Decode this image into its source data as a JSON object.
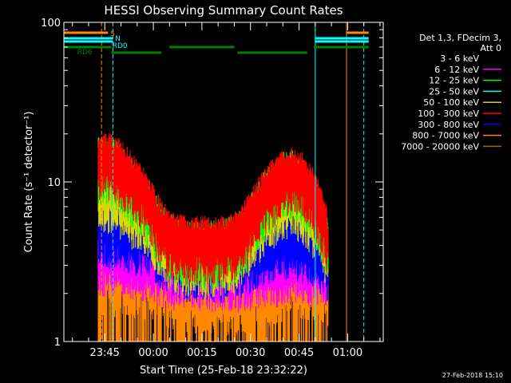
{
  "chart_data": {
    "type": "line",
    "title": "HESSI Observing Summary Count Rates",
    "xlabel": "Start Time (25-Feb-18 23:32:22)",
    "ylabel": "Count Rate (s⁻¹ detector⁻¹)",
    "yscale": "log",
    "ylim": [
      1,
      100
    ],
    "xlim": [
      "23:32:22",
      "01:11:00"
    ],
    "y_ticks": [
      "1",
      "10",
      "100"
    ],
    "x_ticks": [
      "23:45",
      "00:00",
      "00:15",
      "00:30",
      "00:45",
      "01:00"
    ],
    "timestamp": "27-Feb-2018 15:10",
    "legend": {
      "placement": "right",
      "header": [
        "Det 1,3, FDecim 3,",
        "Att 0"
      ],
      "entries": [
        {
          "label": "3 - 6 keV",
          "color": "#000000"
        },
        {
          "label": "6 - 12 keV",
          "color": "#ff00ff"
        },
        {
          "label": "12 - 25 keV",
          "color": "#00ff00"
        },
        {
          "label": "25 - 50 keV",
          "color": "#00ffff"
        },
        {
          "label": "50 - 100 keV",
          "color": "#d8d800"
        },
        {
          "label": "100 - 300 keV",
          "color": "#ff0000"
        },
        {
          "label": "300 - 800 keV",
          "color": "#0000ff"
        },
        {
          "label": "800 - 7000 keV",
          "color": "#ff8800"
        },
        {
          "label": "7000 - 20000 keV",
          "color": "#aa6600"
        }
      ]
    },
    "flag_bars": [
      {
        "label": "S",
        "color": "#ff8800",
        "segments": [
          [
            "23:32:22",
            "23:46:00"
          ],
          [
            "00:59:40",
            "01:06:30"
          ]
        ]
      },
      {
        "label": "N",
        "color": "#00ffff",
        "segments": [
          [
            "23:32:22",
            "23:47:30"
          ],
          [
            "00:50:00",
            "01:06:30"
          ]
        ]
      },
      {
        "label": "RD0",
        "color": "#00ffff",
        "segments": [
          [
            "23:32:22",
            "23:47:30"
          ],
          [
            "00:50:00",
            "01:06:30"
          ]
        ]
      },
      {
        "label": "RD6",
        "color": "#007f00",
        "segments": [
          [
            "23:32:22",
            "23:47:00"
          ],
          [
            "23:47:00",
            "00:02:30"
          ],
          [
            "00:05:00",
            "00:25:00"
          ],
          [
            "00:26:00",
            "00:47:30"
          ],
          [
            "00:49:30",
            "01:06:30"
          ]
        ]
      }
    ],
    "vlines": [
      {
        "time": "23:44:00",
        "color": "#ff8800",
        "style": "dashed"
      },
      {
        "time": "23:47:30",
        "color": "#00ffff",
        "style": "dashed"
      },
      {
        "time": "00:50:00",
        "color": "#00ffff",
        "style": "solid"
      },
      {
        "time": "00:59:40",
        "color": "#ff8800",
        "style": "solid"
      },
      {
        "time": "01:05:00",
        "color": "#00ffff",
        "style": "dashed"
      }
    ],
    "bands": [
      {
        "name": "100 - 300 keV",
        "color": "#ff0000",
        "points": [
          [
            "23:43:00",
            16
          ],
          [
            "23:46:00",
            16
          ],
          [
            "23:49:00",
            15
          ],
          [
            "23:52:00",
            13
          ],
          [
            "23:55:00",
            11
          ],
          [
            "23:58:00",
            9
          ],
          [
            "00:01:00",
            7
          ],
          [
            "00:04:00",
            5.5
          ],
          [
            "00:07:00",
            5
          ],
          [
            "00:10:00",
            4.8
          ],
          [
            "00:15:00",
            4.8
          ],
          [
            "00:20:00",
            4.8
          ],
          [
            "00:25:00",
            5
          ],
          [
            "00:28:00",
            6
          ],
          [
            "00:31:00",
            7.5
          ],
          [
            "00:34:00",
            9.5
          ],
          [
            "00:37:00",
            11
          ],
          [
            "00:40:00",
            12.5
          ],
          [
            "00:43:00",
            13
          ],
          [
            "00:46:00",
            12
          ],
          [
            "00:49:00",
            10
          ],
          [
            "00:52:00",
            7
          ],
          [
            "00:54:00",
            5
          ]
        ]
      },
      {
        "name": "12 - 25 keV",
        "color": "#00ff00",
        "points": [
          [
            "23:43:00",
            15
          ],
          [
            "23:46:00",
            15
          ],
          [
            "23:49:00",
            14
          ],
          [
            "23:52:00",
            12
          ],
          [
            "23:55:00",
            10
          ],
          [
            "23:58:00",
            8.5
          ],
          [
            "00:01:00",
            6.5
          ],
          [
            "00:04:00",
            5.2
          ],
          [
            "00:07:00",
            4.8
          ],
          [
            "00:10:00",
            4.5
          ],
          [
            "00:20:00",
            4.5
          ],
          [
            "00:25:00",
            4.8
          ],
          [
            "00:28:00",
            5.5
          ],
          [
            "00:31:00",
            7
          ],
          [
            "00:34:00",
            9
          ],
          [
            "00:37:00",
            10.5
          ],
          [
            "00:40:00",
            12
          ],
          [
            "00:43:00",
            12.5
          ],
          [
            "00:46:00",
            11
          ],
          [
            "00:49:00",
            9
          ],
          [
            "00:52:00",
            6.5
          ],
          [
            "00:54:00",
            4.8
          ]
        ]
      },
      {
        "name": "50 - 100 keV",
        "color": "#d8d800",
        "points": [
          [
            "23:43:00",
            10
          ],
          [
            "23:46:00",
            10
          ],
          [
            "23:49:00",
            9.5
          ],
          [
            "23:52:00",
            8.5
          ],
          [
            "23:55:00",
            7.5
          ],
          [
            "23:58:00",
            6.5
          ],
          [
            "00:01:00",
            5.5
          ],
          [
            "00:04:00",
            4.6
          ],
          [
            "00:07:00",
            4.2
          ],
          [
            "00:10:00",
            4
          ],
          [
            "00:20:00",
            4
          ],
          [
            "00:25:00",
            4.2
          ],
          [
            "00:28:00",
            4.8
          ],
          [
            "00:31:00",
            5.8
          ],
          [
            "00:34:00",
            7
          ],
          [
            "00:37:00",
            8
          ],
          [
            "00:40:00",
            9
          ],
          [
            "00:43:00",
            9.5
          ],
          [
            "00:46:00",
            8.5
          ],
          [
            "00:49:00",
            7
          ],
          [
            "00:52:00",
            5.5
          ],
          [
            "00:54:00",
            4.2
          ]
        ]
      },
      {
        "name": "300 - 800 keV",
        "color": "#0000ff",
        "points": [
          [
            "23:43:00",
            6
          ],
          [
            "23:46:00",
            6
          ],
          [
            "23:52:00",
            5.7
          ],
          [
            "23:58:00",
            5.2
          ],
          [
            "00:04:00",
            4.3
          ],
          [
            "00:10:00",
            3.7
          ],
          [
            "00:20:00",
            3.7
          ],
          [
            "00:28:00",
            4
          ],
          [
            "00:34:00",
            4.6
          ],
          [
            "00:40:00",
            5.2
          ],
          [
            "00:46:00",
            5
          ],
          [
            "00:50:00",
            4.5
          ],
          [
            "00:54:00",
            3.6
          ]
        ]
      },
      {
        "name": "6 - 12 keV",
        "color": "#ff00ff",
        "points": [
          [
            "23:43:00",
            4
          ],
          [
            "23:50:00",
            4
          ],
          [
            "23:58:00",
            3.7
          ],
          [
            "00:05:00",
            3.3
          ],
          [
            "00:15:00",
            3.2
          ],
          [
            "00:25:00",
            3.2
          ],
          [
            "00:35:00",
            3.4
          ],
          [
            "00:45:00",
            3.6
          ],
          [
            "00:52:00",
            3.4
          ],
          [
            "00:54:00",
            3
          ]
        ]
      },
      {
        "name": "800 - 7000 keV",
        "color": "#ff8800",
        "points": [
          [
            "23:43:00",
            3
          ],
          [
            "23:50:00",
            3
          ],
          [
            "23:58:00",
            2.8
          ],
          [
            "00:05:00",
            2.5
          ],
          [
            "00:15:00",
            2.3
          ],
          [
            "00:25:00",
            2.3
          ],
          [
            "00:35:00",
            2.6
          ],
          [
            "00:45:00",
            2.9
          ],
          [
            "00:52:00",
            2.7
          ],
          [
            "00:54:00",
            2.4
          ]
        ]
      }
    ]
  }
}
